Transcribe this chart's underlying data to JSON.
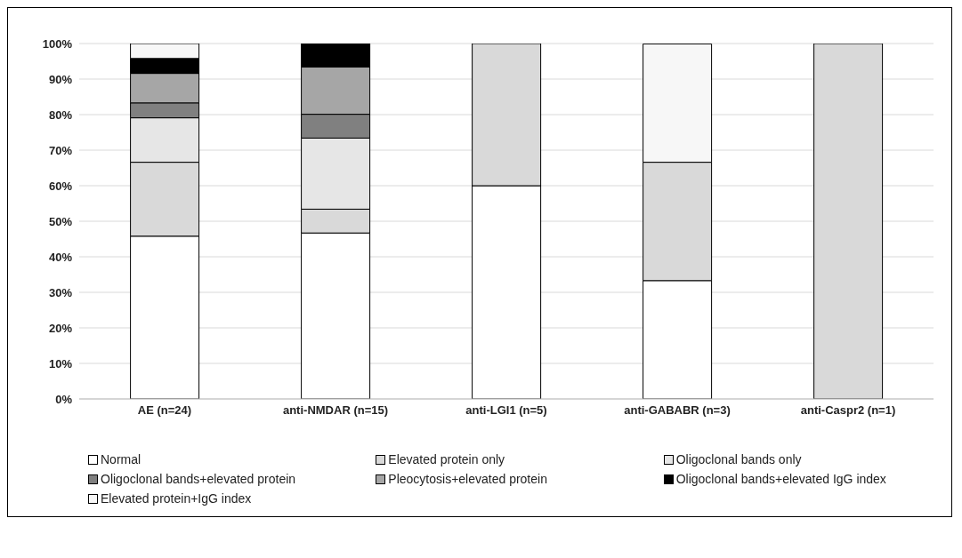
{
  "chart_data": {
    "type": "bar",
    "stacked": true,
    "categories": [
      "AE (n=24)",
      "anti-NMDAR (n=15)",
      "anti-LGI1 (n=5)",
      "anti-GABABR (n=3)",
      "anti-Caspr2 (n=1)"
    ],
    "series": [
      {
        "name": "Normal",
        "color": "#ffffff",
        "values": [
          45.8,
          46.7,
          60,
          33.3,
          0
        ]
      },
      {
        "name": "Elevated protein only",
        "color": "#d9d9d9",
        "values": [
          20.8,
          6.7,
          40,
          33.3,
          100
        ]
      },
      {
        "name": "Oligoclonal bands only",
        "color": "#e6e6e6",
        "values": [
          12.5,
          20,
          0,
          0,
          0
        ]
      },
      {
        "name": "Oligoclonal bands+elevated protein",
        "color": "#808080",
        "values": [
          4.2,
          6.7,
          0,
          0,
          0
        ]
      },
      {
        "name": "Pleocytosis+elevated protein",
        "color": "#a6a6a6",
        "values": [
          8.3,
          13.3,
          0,
          0,
          0
        ]
      },
      {
        "name": "Oligoclonal bands+elevated IgG index",
        "color": "#000000",
        "values": [
          4.2,
          6.7,
          0,
          0,
          0
        ]
      },
      {
        "name": "Elevated protein+IgG index",
        "color": "#f7f7f7",
        "values": [
          4.2,
          0,
          0,
          33.3,
          0
        ]
      }
    ],
    "ylim": [
      0,
      100
    ],
    "yticks": [
      {
        "value": 0,
        "label": "0%"
      },
      {
        "value": 10,
        "label": "10%"
      },
      {
        "value": 20,
        "label": "20%"
      },
      {
        "value": 30,
        "label": "30%"
      },
      {
        "value": 40,
        "label": "40%"
      },
      {
        "value": 50,
        "label": "50%"
      },
      {
        "value": 60,
        "label": "60%"
      },
      {
        "value": 70,
        "label": "70%"
      },
      {
        "value": 80,
        "label": "80%"
      },
      {
        "value": 90,
        "label": "90%"
      },
      {
        "value": 100,
        "label": "100%"
      }
    ],
    "grid": "y",
    "legend": "bottom"
  }
}
